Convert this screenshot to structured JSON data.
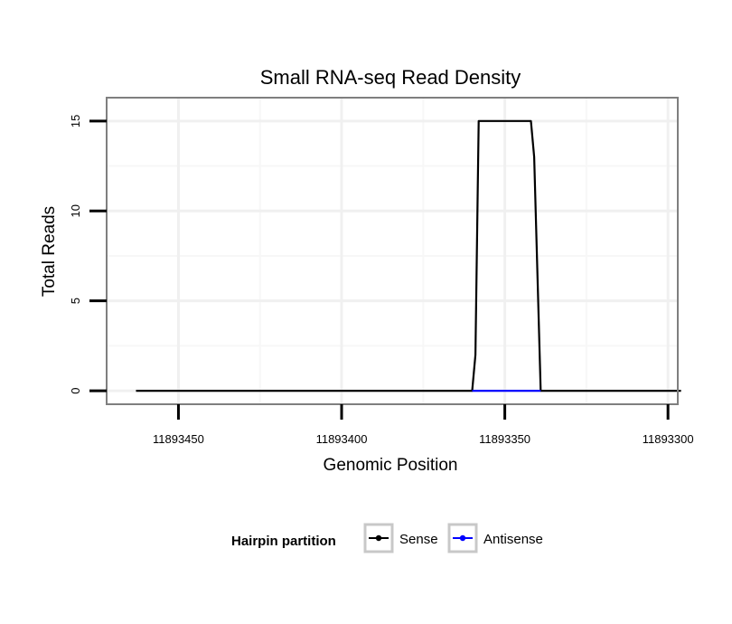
{
  "chart_data": {
    "type": "line",
    "title": "Small RNA-seq Read Density",
    "xlabel": "Genomic Position",
    "ylabel": "Total Reads",
    "x_reversed": true,
    "xlim": [
      11893472,
      11893297
    ],
    "ylim": [
      -0.75,
      16.3
    ],
    "x_ticks": [
      11893450,
      11893400,
      11893350,
      11893300
    ],
    "x_tick_labels": [
      "11893450",
      "11893400",
      "11893350",
      "11893300"
    ],
    "y_ticks": [
      0,
      5,
      10,
      15
    ],
    "y_tick_labels": [
      "0",
      "5",
      "10",
      "15"
    ],
    "grid": true,
    "legend": {
      "title": "Hairpin partition",
      "position": "bottom"
    },
    "series": [
      {
        "name": "Sense",
        "color": "#000000",
        "x": [
          11893463,
          11893360,
          11893359,
          11893358,
          11893342,
          11893341,
          11893339,
          11893296
        ],
        "y": [
          0,
          0,
          2,
          15,
          15,
          13,
          0,
          0
        ]
      },
      {
        "name": "Antisense",
        "color": "#0000ff",
        "x": [
          11893360,
          11893339
        ],
        "y": [
          0,
          0
        ]
      }
    ]
  }
}
